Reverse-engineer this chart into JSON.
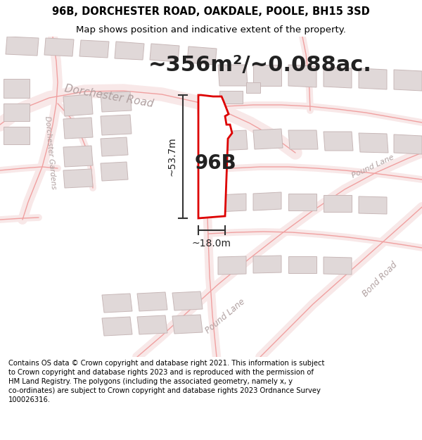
{
  "title_line1": "96B, DORCHESTER ROAD, OAKDALE, POOLE, BH15 3SD",
  "title_line2": "Map shows position and indicative extent of the property.",
  "area_text": "~356m²/~0.088ac.",
  "label_96B": "96B",
  "dim_height": "~53.7m",
  "dim_width": "~18.0m",
  "road_dorchester": "Dorchester Road",
  "road_dorchester_gardens": "Dorchester Gardens",
  "road_pound_lane1": "Pound Lane",
  "road_pound_lane2": "Pound Lane",
  "road_bond": "Bond Road",
  "footer": "Contains OS data © Crown copyright and database right 2021. This information is subject to Crown copyright and database rights 2023 and is reproduced with the permission of HM Land Registry. The polygons (including the associated geometry, namely x, y co-ordinates) are subject to Crown copyright and database rights 2023 Ordnance Survey 100026316.",
  "map_bg": "#ffffff",
  "road_line_color": "#f0a0a0",
  "road_fill_color": "#f8e8e8",
  "building_fill": "#e0d8d8",
  "building_edge": "#c8b8b8",
  "highlight_fill": "#ffffff",
  "highlight_edge": "#dd0000",
  "highlight_lw": 2.0,
  "dim_color": "#222222",
  "road_text_color": "#b0a0a0",
  "title_fontsize": 10.5,
  "subtitle_fontsize": 9.5,
  "area_fontsize": 22,
  "label_fontsize": 20,
  "dim_fontsize": 10,
  "footer_fontsize": 7.2
}
